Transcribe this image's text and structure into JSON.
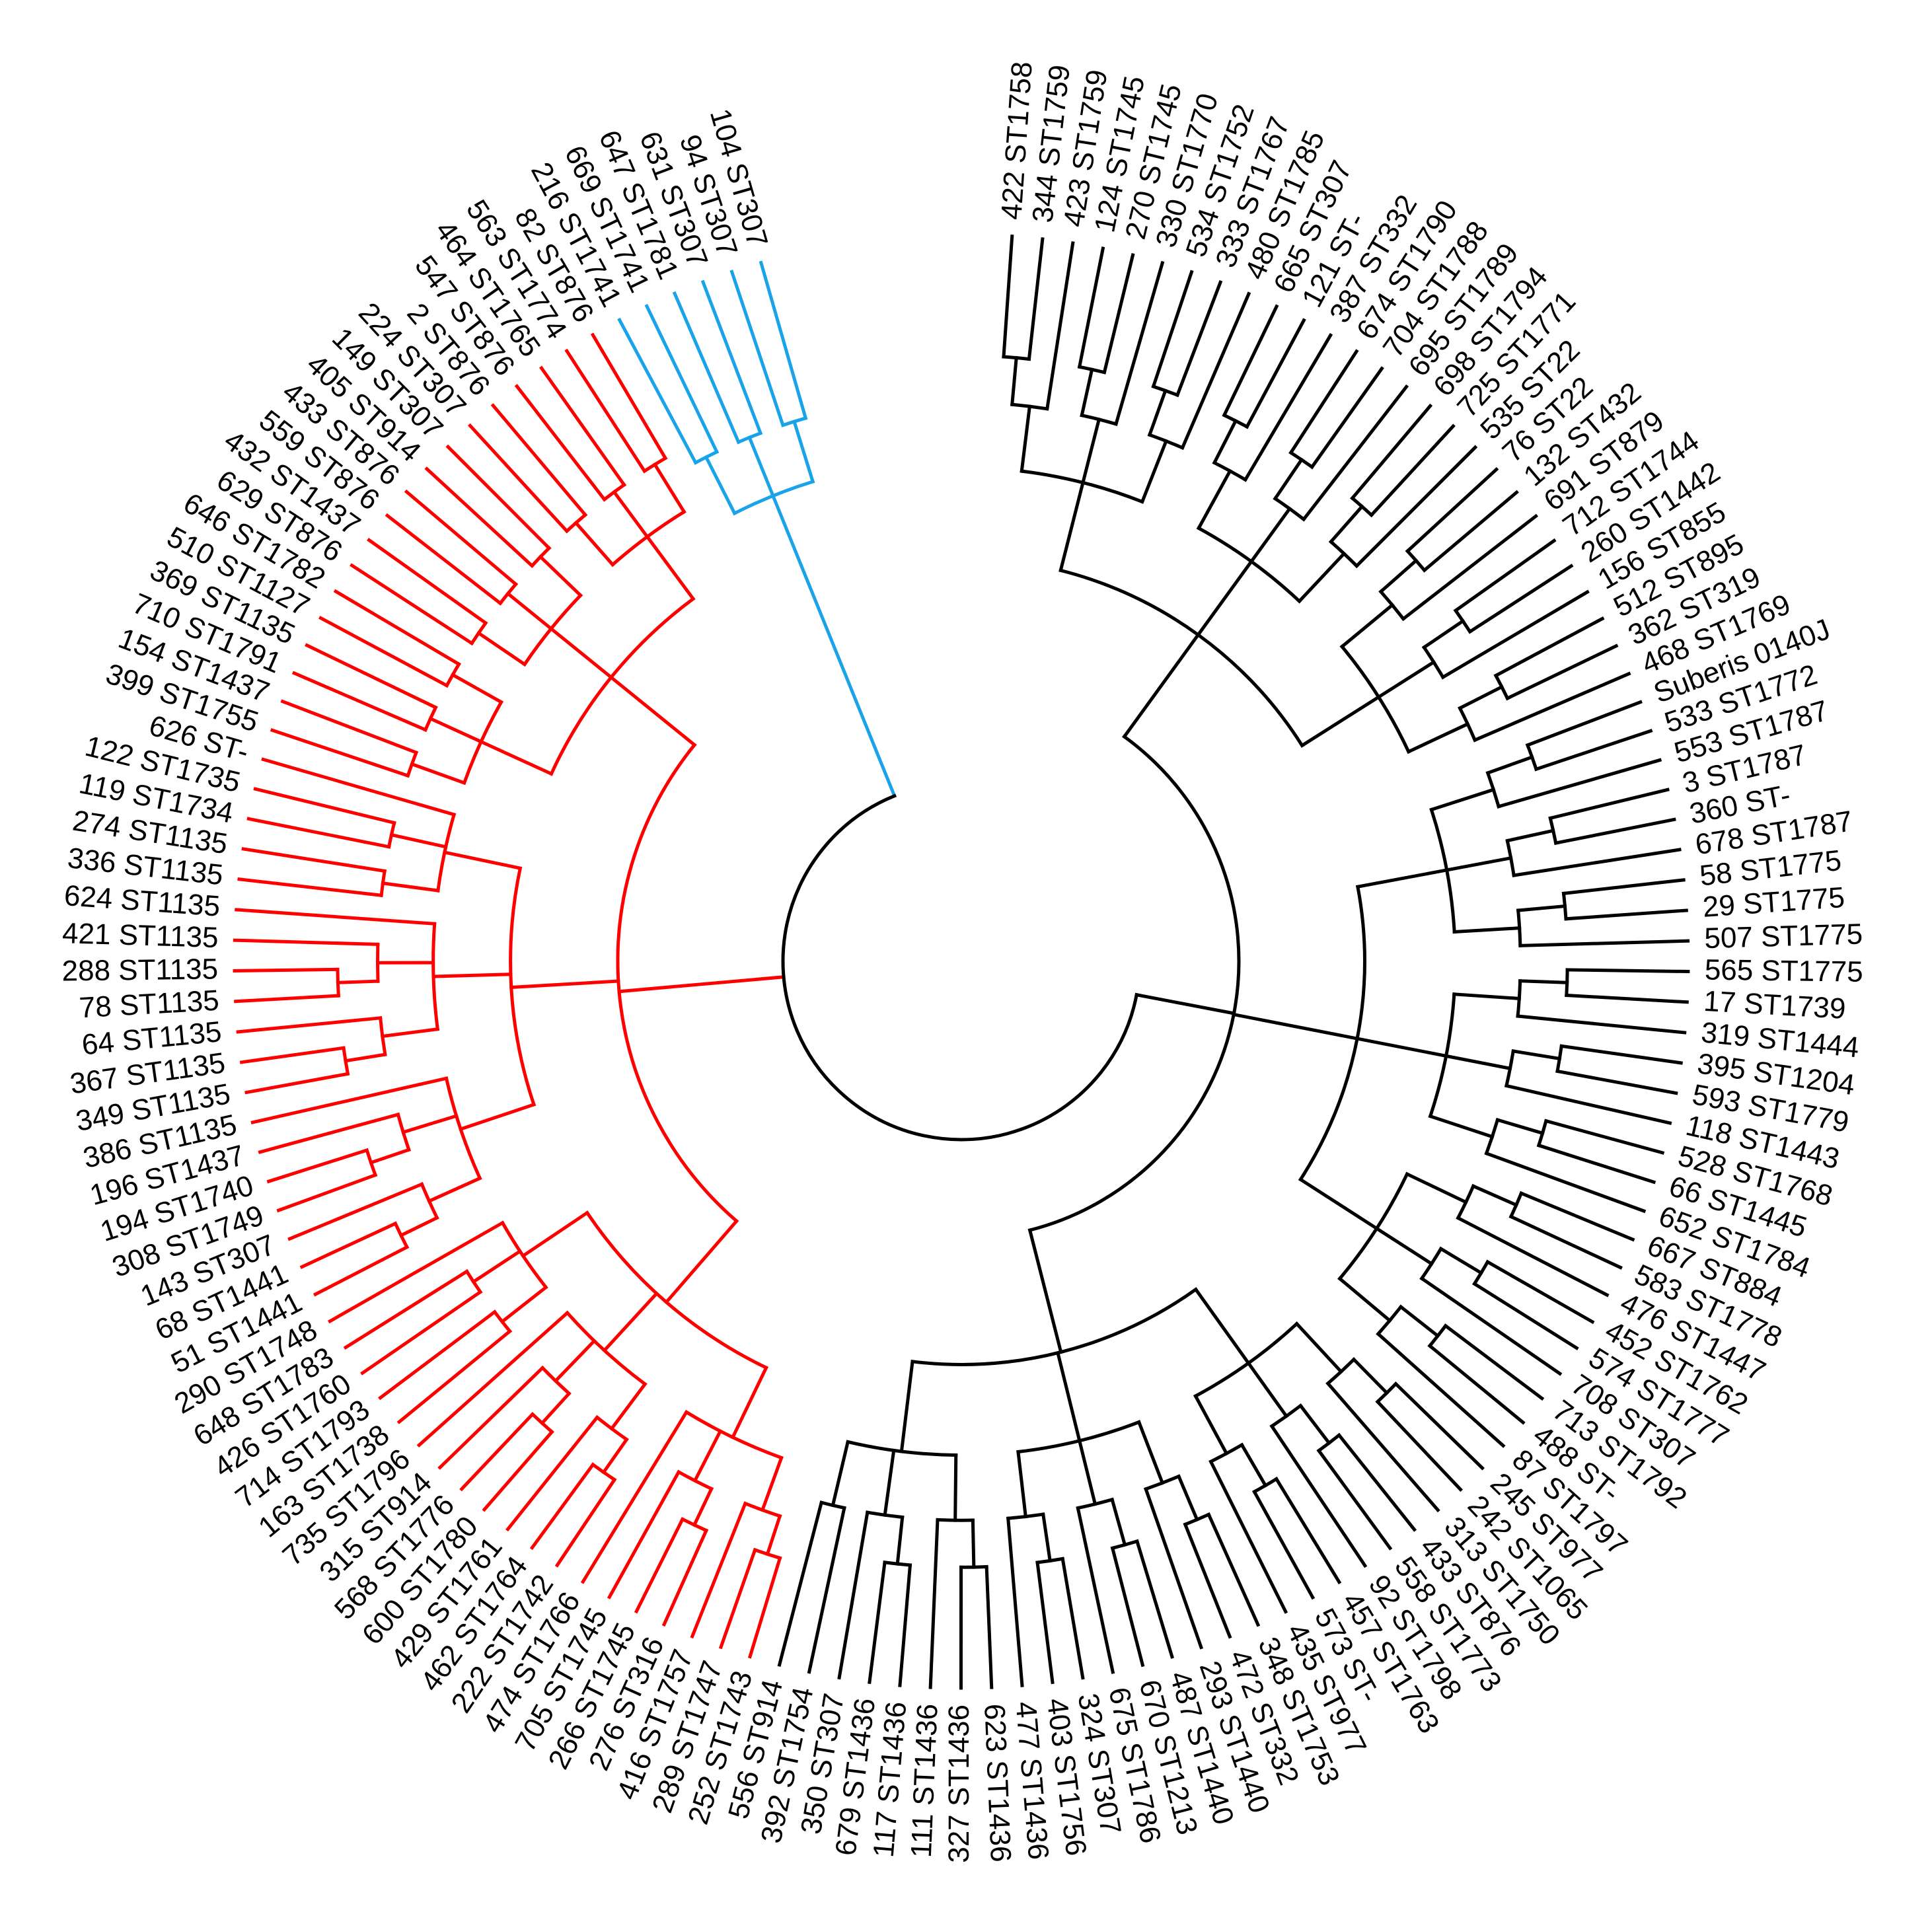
{
  "tree": {
    "colors": {
      "cluster_red": "#ff0000",
      "cluster_blue": "#1aa3e8",
      "cluster_black": "#000000"
    },
    "leaves": [
      {
        "id": "422",
        "st": "ST1758",
        "group": "black"
      },
      {
        "id": "344",
        "st": "ST1759",
        "group": "black"
      },
      {
        "id": "423",
        "st": "ST1759",
        "group": "black"
      },
      {
        "id": "124",
        "st": "ST1745",
        "group": "black"
      },
      {
        "id": "270",
        "st": "ST1745",
        "group": "black"
      },
      {
        "id": "330",
        "st": "ST1770",
        "group": "black"
      },
      {
        "id": "534",
        "st": "ST1752",
        "group": "black"
      },
      {
        "id": "333",
        "st": "ST1767",
        "group": "black"
      },
      {
        "id": "480",
        "st": "ST1785",
        "group": "black"
      },
      {
        "id": "665",
        "st": "ST307",
        "group": "black"
      },
      {
        "id": "121",
        "st": "ST-",
        "group": "black"
      },
      {
        "id": "387",
        "st": "ST332",
        "group": "black"
      },
      {
        "id": "674",
        "st": "ST1790",
        "group": "black"
      },
      {
        "id": "704",
        "st": "ST1788",
        "group": "black"
      },
      {
        "id": "695",
        "st": "ST1789",
        "group": "black"
      },
      {
        "id": "698",
        "st": "ST1794",
        "group": "black"
      },
      {
        "id": "725",
        "st": "ST1771",
        "group": "black"
      },
      {
        "id": "535",
        "st": "ST22",
        "group": "black"
      },
      {
        "id": "76",
        "st": "ST22",
        "group": "black"
      },
      {
        "id": "132",
        "st": "ST432",
        "group": "black"
      },
      {
        "id": "691",
        "st": "ST879",
        "group": "black"
      },
      {
        "id": "712",
        "st": "ST1744",
        "group": "black"
      },
      {
        "id": "260",
        "st": "ST1442",
        "group": "black"
      },
      {
        "id": "156",
        "st": "ST855",
        "group": "black"
      },
      {
        "id": "512",
        "st": "ST895",
        "group": "black"
      },
      {
        "id": "362",
        "st": "ST319",
        "group": "black"
      },
      {
        "id": "468",
        "st": "ST1769",
        "group": "black"
      },
      {
        "id": "Suberis",
        "st": "0140J",
        "group": "black"
      },
      {
        "id": "533",
        "st": "ST1772",
        "group": "black"
      },
      {
        "id": "553",
        "st": "ST1787",
        "group": "black"
      },
      {
        "id": "3",
        "st": "ST1787",
        "group": "black"
      },
      {
        "id": "360",
        "st": "ST-",
        "group": "black"
      },
      {
        "id": "678",
        "st": "ST1787",
        "group": "black"
      },
      {
        "id": "58",
        "st": "ST1775",
        "group": "black"
      },
      {
        "id": "29",
        "st": "ST1775",
        "group": "black"
      },
      {
        "id": "507",
        "st": "ST1775",
        "group": "black"
      },
      {
        "id": "565",
        "st": "ST1775",
        "group": "black"
      },
      {
        "id": "17",
        "st": "ST1739",
        "group": "black"
      },
      {
        "id": "319",
        "st": "ST1444",
        "group": "black"
      },
      {
        "id": "395",
        "st": "ST1204",
        "group": "black"
      },
      {
        "id": "593",
        "st": "ST1779",
        "group": "black"
      },
      {
        "id": "118",
        "st": "ST1443",
        "group": "black"
      },
      {
        "id": "528",
        "st": "ST1768",
        "group": "black"
      },
      {
        "id": "66",
        "st": "ST1445",
        "group": "black"
      },
      {
        "id": "652",
        "st": "ST1784",
        "group": "black"
      },
      {
        "id": "667",
        "st": "ST884",
        "group": "black"
      },
      {
        "id": "583",
        "st": "ST1778",
        "group": "black"
      },
      {
        "id": "476",
        "st": "ST1447",
        "group": "black"
      },
      {
        "id": "452",
        "st": "ST1762",
        "group": "black"
      },
      {
        "id": "574",
        "st": "ST1777",
        "group": "black"
      },
      {
        "id": "708",
        "st": "ST307",
        "group": "black"
      },
      {
        "id": "713",
        "st": "ST1792",
        "group": "black"
      },
      {
        "id": "488",
        "st": "ST-",
        "group": "black"
      },
      {
        "id": "87",
        "st": "ST1797",
        "group": "black"
      },
      {
        "id": "245",
        "st": "ST977",
        "group": "black"
      },
      {
        "id": "242",
        "st": "ST1065",
        "group": "black"
      },
      {
        "id": "313",
        "st": "ST1750",
        "group": "black"
      },
      {
        "id": "433",
        "st": "ST876",
        "group": "black"
      },
      {
        "id": "558",
        "st": "ST1773",
        "group": "black"
      },
      {
        "id": "92",
        "st": "ST1798",
        "group": "black"
      },
      {
        "id": "457",
        "st": "ST1763",
        "group": "black"
      },
      {
        "id": "573",
        "st": "ST-",
        "group": "black"
      },
      {
        "id": "435",
        "st": "ST977",
        "group": "black"
      },
      {
        "id": "348",
        "st": "ST1753",
        "group": "black"
      },
      {
        "id": "472",
        "st": "ST332",
        "group": "black"
      },
      {
        "id": "293",
        "st": "ST1440",
        "group": "black"
      },
      {
        "id": "487",
        "st": "ST1440",
        "group": "black"
      },
      {
        "id": "670",
        "st": "ST1213",
        "group": "black"
      },
      {
        "id": "675",
        "st": "ST1786",
        "group": "black"
      },
      {
        "id": "324",
        "st": "ST307",
        "group": "black"
      },
      {
        "id": "403",
        "st": "ST1756",
        "group": "black"
      },
      {
        "id": "477",
        "st": "ST1436",
        "group": "black"
      },
      {
        "id": "623",
        "st": "ST1436",
        "group": "black"
      },
      {
        "id": "327",
        "st": "ST1436",
        "group": "black"
      },
      {
        "id": "111",
        "st": "ST1436",
        "group": "black"
      },
      {
        "id": "117",
        "st": "ST1436",
        "group": "black"
      },
      {
        "id": "679",
        "st": "ST1436",
        "group": "black"
      },
      {
        "id": "350",
        "st": "ST307",
        "group": "black"
      },
      {
        "id": "392",
        "st": "ST1754",
        "group": "black"
      },
      {
        "id": "556",
        "st": "ST914",
        "group": "black"
      },
      {
        "id": "252",
        "st": "ST1743",
        "group": "red"
      },
      {
        "id": "289",
        "st": "ST1747",
        "group": "red"
      },
      {
        "id": "416",
        "st": "ST1757",
        "group": "red"
      },
      {
        "id": "276",
        "st": "ST316",
        "group": "red"
      },
      {
        "id": "266",
        "st": "ST1745",
        "group": "red"
      },
      {
        "id": "705",
        "st": "ST1745",
        "group": "red"
      },
      {
        "id": "474",
        "st": "ST1766",
        "group": "red"
      },
      {
        "id": "222",
        "st": "ST1742",
        "group": "red"
      },
      {
        "id": "462",
        "st": "ST1764",
        "group": "red"
      },
      {
        "id": "429",
        "st": "ST1761",
        "group": "red"
      },
      {
        "id": "600",
        "st": "ST1780",
        "group": "red"
      },
      {
        "id": "568",
        "st": "ST1776",
        "group": "red"
      },
      {
        "id": "315",
        "st": "ST914",
        "group": "red"
      },
      {
        "id": "735",
        "st": "ST1796",
        "group": "red"
      },
      {
        "id": "163",
        "st": "ST1738",
        "group": "red"
      },
      {
        "id": "714",
        "st": "ST1793",
        "group": "red"
      },
      {
        "id": "426",
        "st": "ST1760",
        "group": "red"
      },
      {
        "id": "648",
        "st": "ST1783",
        "group": "red"
      },
      {
        "id": "290",
        "st": "ST1748",
        "group": "red"
      },
      {
        "id": "51",
        "st": "ST1441",
        "group": "red"
      },
      {
        "id": "68",
        "st": "ST1441",
        "group": "red"
      },
      {
        "id": "143",
        "st": "ST307",
        "group": "red"
      },
      {
        "id": "308",
        "st": "ST1749",
        "group": "red"
      },
      {
        "id": "194",
        "st": "ST1740",
        "group": "red"
      },
      {
        "id": "196",
        "st": "ST1437",
        "group": "red"
      },
      {
        "id": "386",
        "st": "ST1135",
        "group": "red"
      },
      {
        "id": "349",
        "st": "ST1135",
        "group": "red"
      },
      {
        "id": "367",
        "st": "ST1135",
        "group": "red"
      },
      {
        "id": "64",
        "st": "ST1135",
        "group": "red"
      },
      {
        "id": "78",
        "st": "ST1135",
        "group": "red"
      },
      {
        "id": "288",
        "st": "ST1135",
        "group": "red"
      },
      {
        "id": "421",
        "st": "ST1135",
        "group": "red"
      },
      {
        "id": "624",
        "st": "ST1135",
        "group": "red"
      },
      {
        "id": "336",
        "st": "ST1135",
        "group": "red"
      },
      {
        "id": "274",
        "st": "ST1135",
        "group": "red"
      },
      {
        "id": "119",
        "st": "ST1734",
        "group": "red"
      },
      {
        "id": "122",
        "st": "ST1735",
        "group": "red"
      },
      {
        "id": "626",
        "st": "ST-",
        "group": "red"
      },
      {
        "id": "399",
        "st": "ST1755",
        "group": "red"
      },
      {
        "id": "154",
        "st": "ST1437",
        "group": "red"
      },
      {
        "id": "710",
        "st": "ST1791",
        "group": "red"
      },
      {
        "id": "369",
        "st": "ST1135",
        "group": "red"
      },
      {
        "id": "510",
        "st": "ST1127",
        "group": "red"
      },
      {
        "id": "646",
        "st": "ST1782",
        "group": "red"
      },
      {
        "id": "629",
        "st": "ST876",
        "group": "red"
      },
      {
        "id": "432",
        "st": "ST1437",
        "group": "red"
      },
      {
        "id": "559",
        "st": "ST876",
        "group": "red"
      },
      {
        "id": "433",
        "st": "ST876",
        "group": "red"
      },
      {
        "id": "405",
        "st": "ST914",
        "group": "red"
      },
      {
        "id": "149",
        "st": "ST307",
        "group": "red"
      },
      {
        "id": "224",
        "st": "ST307",
        "group": "red"
      },
      {
        "id": "2",
        "st": "ST876",
        "group": "red"
      },
      {
        "id": "547",
        "st": "ST876",
        "group": "red"
      },
      {
        "id": "464",
        "st": "ST1765",
        "group": "red"
      },
      {
        "id": "563",
        "st": "ST1774",
        "group": "red"
      },
      {
        "id": "82",
        "st": "ST876",
        "group": "red"
      },
      {
        "id": "216",
        "st": "ST1741",
        "group": "blue"
      },
      {
        "id": "669",
        "st": "ST1741",
        "group": "blue"
      },
      {
        "id": "647",
        "st": "ST1781",
        "group": "blue"
      },
      {
        "id": "631",
        "st": "ST307",
        "group": "blue"
      },
      {
        "id": "94",
        "st": "ST307",
        "group": "blue"
      },
      {
        "id": "104",
        "st": "ST307",
        "group": "blue"
      }
    ]
  }
}
